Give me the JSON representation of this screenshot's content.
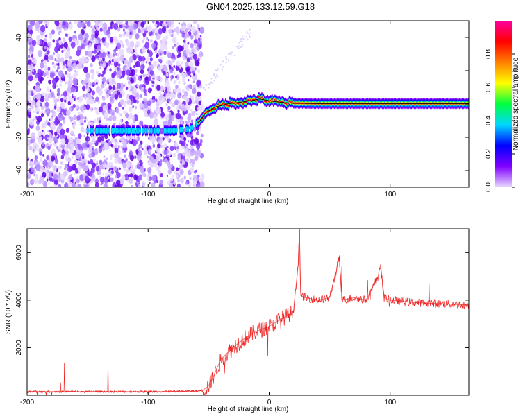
{
  "title": "GN04.2025.133.12.59.G18",
  "chart_data": [
    {
      "type": "heatmap",
      "xlabel": "Height of straight line (km)",
      "ylabel": "Frequency (Hz)",
      "xlim": [
        -200,
        165
      ],
      "ylim": [
        -50,
        50
      ],
      "x_ticks": [
        -200,
        -100,
        0,
        100
      ],
      "y_ticks": [
        -40,
        -20,
        0,
        20,
        40
      ],
      "grid": false,
      "colorbar": {
        "label": "Normalized spectral amplitude",
        "range": [
          0,
          1
        ],
        "ticks": [
          "0.0",
          "0.2",
          "0.4",
          "0.6",
          "0.8"
        ],
        "colormap": [
          "#e8d8ff",
          "#8000ff",
          "#0000ff",
          "#00d8ff",
          "#00ff40",
          "#ffff00",
          "#ff8000",
          "#ff0000",
          "#ff00a0"
        ]
      },
      "noise_region_x": [
        -200,
        -55
      ],
      "ridge": {
        "x": [
          -150,
          -120,
          -100,
          -80,
          -65,
          -57,
          -52,
          -45,
          -35,
          -25,
          -15,
          -8,
          0,
          10,
          20,
          40,
          60,
          80,
          100,
          120,
          165
        ],
        "y": [
          -16,
          -16,
          -16,
          -16,
          -15,
          -10,
          -5,
          -2,
          0,
          1,
          2,
          3,
          2,
          1,
          0.5,
          0.3,
          0.3,
          0.3,
          0.3,
          0.3,
          0.3
        ]
      }
    },
    {
      "type": "line",
      "xlabel": "Height of straight line (km)",
      "ylabel": "SNR (10 * v/v)",
      "xlim": [
        -200,
        165
      ],
      "ylim": [
        0,
        7000
      ],
      "x_ticks": [
        -200,
        -100,
        0,
        100
      ],
      "y_ticks": [
        2000,
        4000,
        6000
      ],
      "grid": false,
      "series": [
        {
          "color": "#ee2222",
          "x": [
            -200,
            -150,
            -100,
            -60,
            -55,
            -50,
            -45,
            -40,
            -30,
            -20,
            -10,
            0,
            10,
            20,
            24,
            25,
            26,
            30,
            40,
            50,
            58,
            60,
            70,
            80,
            90,
            92,
            95,
            100,
            120,
            140,
            165
          ],
          "y": [
            150,
            150,
            150,
            170,
            200,
            400,
            900,
            1500,
            2000,
            2400,
            2700,
            2900,
            3200,
            3500,
            5500,
            7000,
            4200,
            4100,
            4000,
            4100,
            5800,
            4000,
            4100,
            4000,
            5000,
            5500,
            4100,
            4000,
            3900,
            3850,
            3800
          ]
        }
      ]
    }
  ]
}
